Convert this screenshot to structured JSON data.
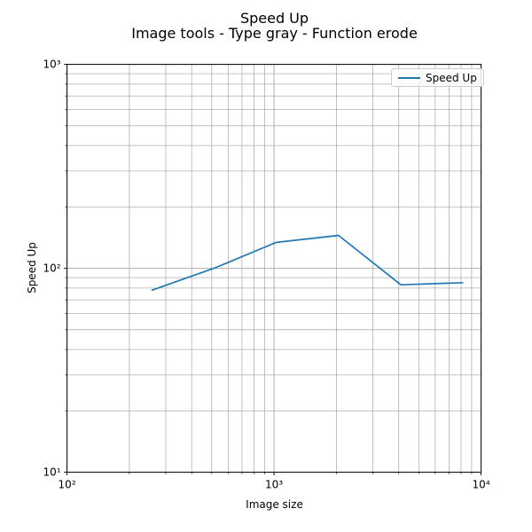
{
  "chart_data": {
    "type": "line",
    "title": "Speed Up",
    "subtitle": "Image tools - Type gray - Function erode",
    "xlabel": "Image size",
    "ylabel": "Speed Up",
    "x": [
      256,
      512,
      1024,
      2048,
      4096,
      8192
    ],
    "series": [
      {
        "name": "Speed Up",
        "color": "#1f77b4",
        "values": [
          78,
          100,
          134,
          145,
          83,
          85
        ]
      }
    ],
    "xscale": "log",
    "yscale": "log",
    "xlim": [
      100,
      10000
    ],
    "ylim": [
      10,
      1000
    ],
    "x_tick_labels": [
      "10²",
      "10³",
      "10⁴"
    ],
    "y_tick_labels": [
      "10¹",
      "10²",
      "10³"
    ],
    "grid": {
      "which": "both",
      "color": "#b0b0b0"
    },
    "legend": {
      "position": "upper right",
      "entries": [
        "Speed Up"
      ]
    },
    "frame_color": "#000000"
  }
}
